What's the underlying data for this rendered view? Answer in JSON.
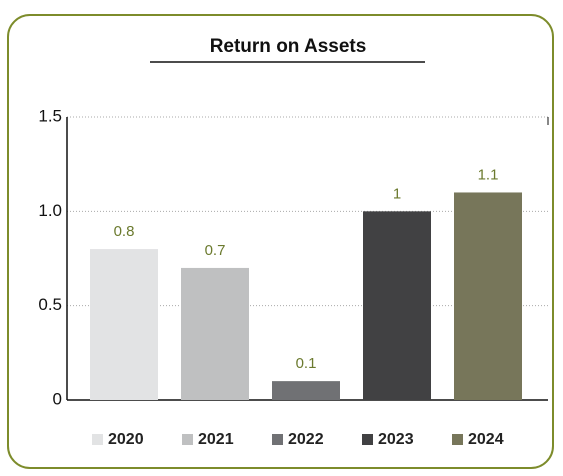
{
  "chart_data": {
    "type": "bar",
    "title": "Return on Assets",
    "categories": [
      "2020",
      "2021",
      "2022",
      "2023",
      "2024"
    ],
    "values": [
      0.8,
      0.7,
      0.1,
      1,
      1.1
    ],
    "colors": [
      "#e2e3e4",
      "#bfc0c1",
      "#707174",
      "#414143",
      "#77765a"
    ],
    "ylim": [
      0,
      1.5
    ],
    "yticks": [
      0,
      0.5,
      {
        "value": 1,
        "label": "1.0"
      },
      1.5
    ],
    "grid": true
  }
}
